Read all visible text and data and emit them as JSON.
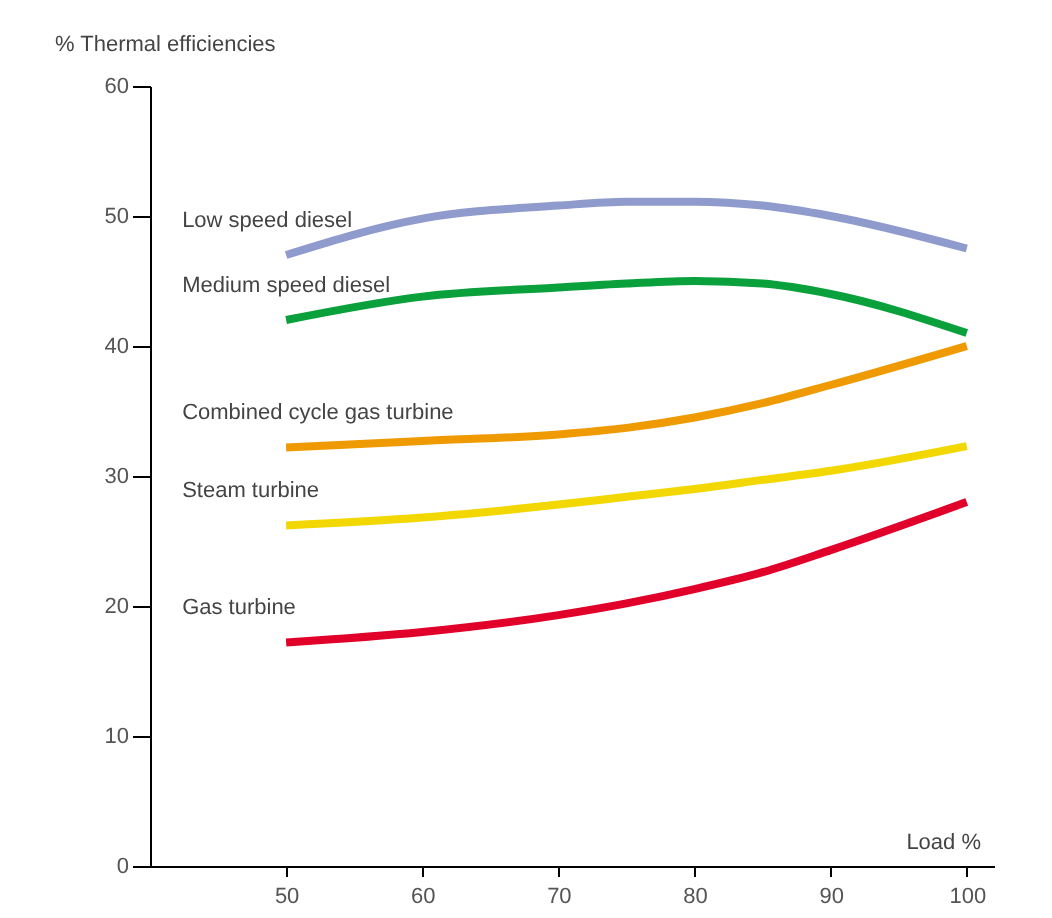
{
  "chart_data": {
    "type": "line",
    "xlabel": "Load %",
    "ylabel": "% Thermal efficiencies",
    "x": [
      50,
      60,
      70,
      75,
      80,
      85,
      90,
      100
    ],
    "series": [
      {
        "name": "Low speed diesel",
        "color": "#8e9bcc",
        "values": [
          47,
          49.8,
          50.8,
          51.1,
          51.1,
          50.8,
          50,
          47.5
        ]
      },
      {
        "name": "Medium speed diesel",
        "color": "#0aa03c",
        "values": [
          42,
          43.8,
          44.5,
          44.8,
          45,
          44.8,
          44,
          41
        ]
      },
      {
        "name": "Combined cycle gas turbine",
        "color": "#ee9a00",
        "values": [
          32.2,
          32.7,
          33.2,
          33.7,
          34.5,
          35.6,
          37,
          40
        ]
      },
      {
        "name": "Steam turbine",
        "color": "#f2d800",
        "values": [
          26.2,
          26.8,
          27.8,
          28.4,
          29,
          29.7,
          30.4,
          32.3
        ]
      },
      {
        "name": "Gas turbine",
        "color": "#e0002a",
        "values": [
          17.2,
          18,
          19.3,
          20.2,
          21.3,
          22.6,
          24.3,
          28
        ]
      }
    ],
    "xlim": [
      40,
      102
    ],
    "xticks": [
      50,
      60,
      70,
      80,
      90,
      100
    ],
    "ylim": [
      0,
      60
    ],
    "yticks": [
      0,
      10,
      20,
      30,
      40,
      50,
      60
    ],
    "grid": false,
    "legend": false,
    "marker": "none",
    "line_style": "solid"
  }
}
